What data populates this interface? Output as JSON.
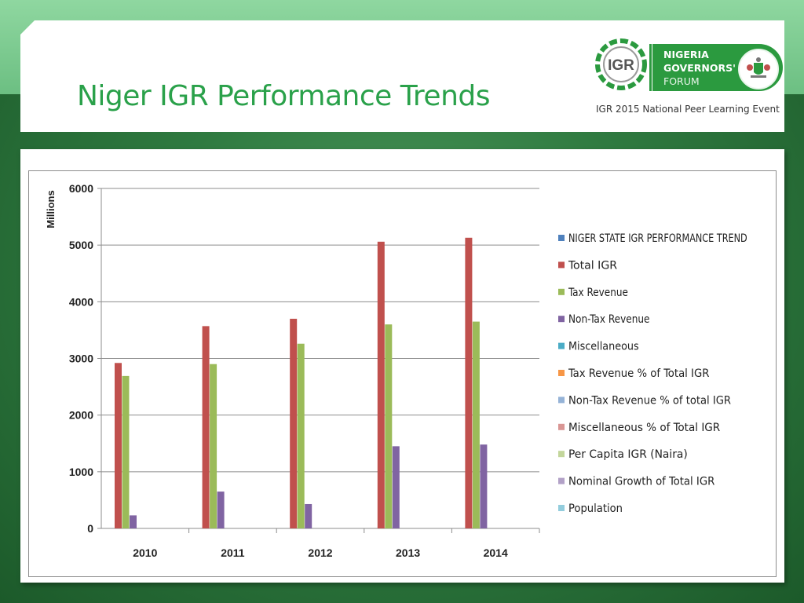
{
  "slide": {
    "title": "Niger IGR Performance Trends",
    "logo": {
      "mark_text": "IGR",
      "org_lines": [
        "NIGERIA",
        "GOVERNORS'",
        "FORUM"
      ],
      "caption": "IGR 2015 National Peer Learning Event"
    },
    "colors": {
      "title_green": "#2aa14a",
      "brand_green": "#2b9a3f"
    }
  },
  "chart_data": {
    "type": "bar",
    "title": "",
    "ylabel": "Millions",
    "xlabel": "",
    "ylim": [
      0,
      6000
    ],
    "yticks": [
      0,
      1000,
      2000,
      3000,
      4000,
      5000,
      6000
    ],
    "grid": true,
    "legend_position": "right",
    "categories": [
      "2010",
      "2011",
      "2012",
      "2013",
      "2014"
    ],
    "series": [
      {
        "name": "NIGER STATE IGR PERFORMANCE TREND",
        "color": "#4f81bd",
        "values": [
          null,
          null,
          null,
          null,
          null
        ]
      },
      {
        "name": "Total IGR",
        "color": "#c0504d",
        "values": [
          2920,
          3570,
          3700,
          5060,
          5130
        ]
      },
      {
        "name": "Tax Revenue",
        "color": "#9bbb59",
        "values": [
          2690,
          2900,
          3260,
          3600,
          3650
        ]
      },
      {
        "name": "Non-Tax Revenue",
        "color": "#8064a2",
        "values": [
          230,
          650,
          430,
          1450,
          1480
        ]
      },
      {
        "name": "Miscellaneous",
        "color": "#4bacc6",
        "values": [
          null,
          null,
          null,
          null,
          null
        ]
      },
      {
        "name": "Tax Revenue % of Total IGR",
        "color": "#f79646",
        "values": [
          null,
          null,
          null,
          null,
          null
        ]
      },
      {
        "name": "Non-Tax Revenue % of total IGR",
        "color": "#95b3d7",
        "values": [
          null,
          null,
          null,
          null,
          null
        ]
      },
      {
        "name": "Miscellaneous % of Total IGR",
        "color": "#d99694",
        "values": [
          null,
          null,
          null,
          null,
          null
        ]
      },
      {
        "name": "Per Capita IGR (Naira)",
        "color": "#c3d69b",
        "values": [
          null,
          null,
          null,
          null,
          null
        ]
      },
      {
        "name": "Nominal Growth of Total IGR",
        "color": "#b2a1c7",
        "values": [
          null,
          null,
          null,
          null,
          null
        ]
      },
      {
        "name": "Population",
        "color": "#93cddd",
        "values": [
          null,
          null,
          null,
          null,
          null
        ]
      }
    ]
  }
}
